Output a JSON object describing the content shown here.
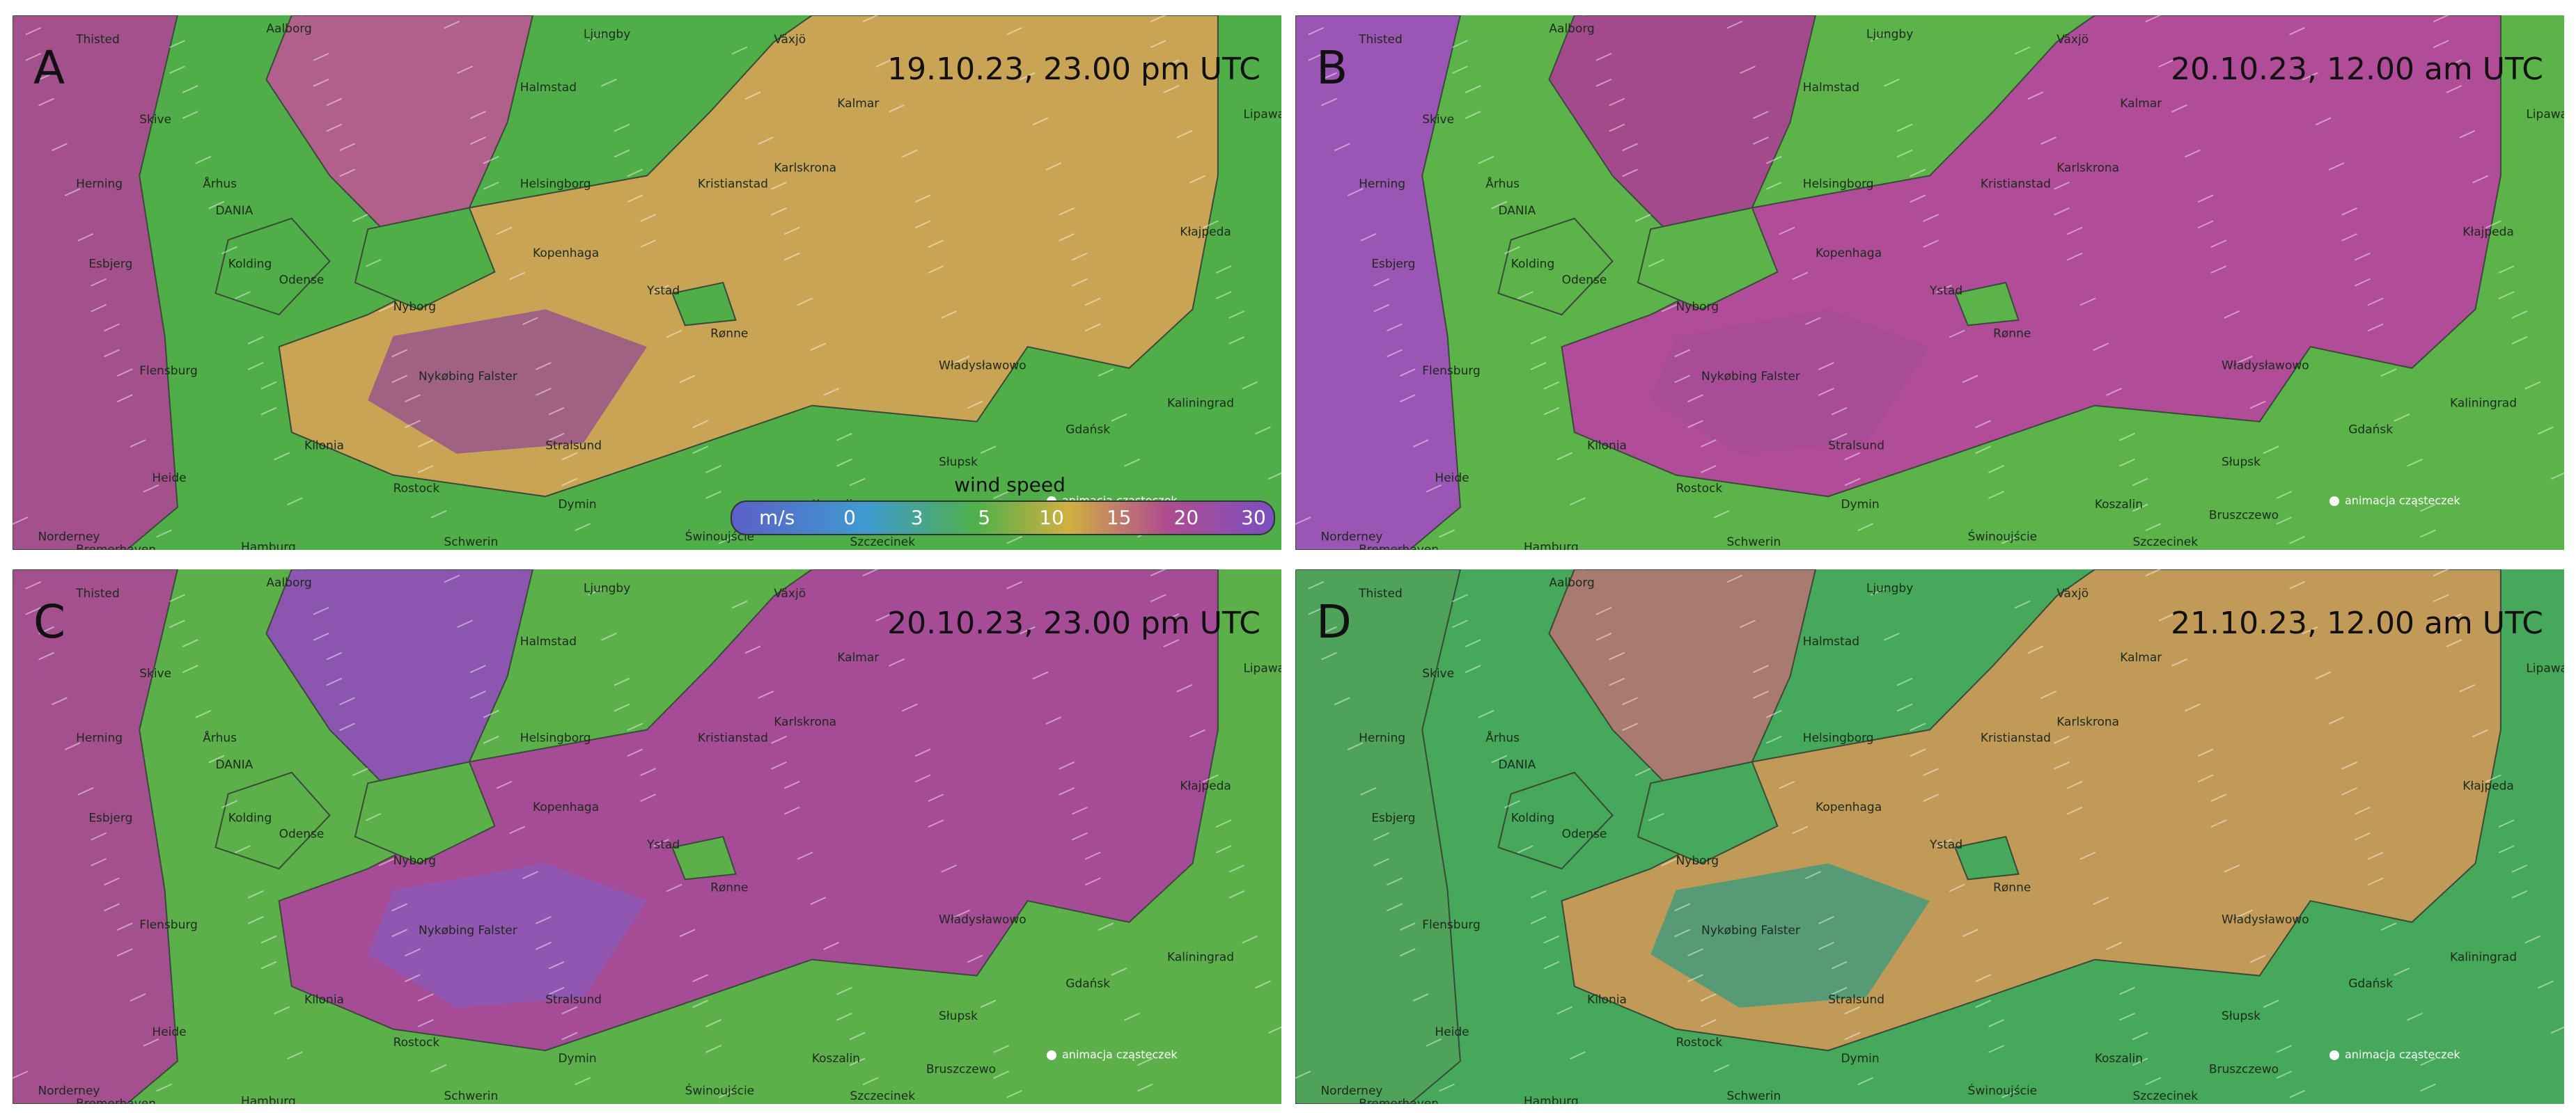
{
  "panels": [
    {
      "label": "A",
      "timestamp": "19.10.23, 23.00 pm UTC",
      "land": "#4fae47",
      "baltic": "#c9a455",
      "kattegat": "#b0608a",
      "north": "#a4508c",
      "south_sea": "#9b5a88"
    },
    {
      "label": "B",
      "timestamp": "20.10.23, 12.00 am UTC",
      "land": "#5cb34a",
      "baltic": "#b04c98",
      "kattegat": "#a24a8c",
      "north": "#9b55b4",
      "south_sea": "#a84d98"
    },
    {
      "label": "C",
      "timestamp": "20.10.23, 23.00 pm UTC",
      "land": "#5cb04a",
      "baltic": "#a64b96",
      "kattegat": "#8c55b0",
      "north": "#a4508f",
      "south_sea": "#8e58b4"
    },
    {
      "label": "D",
      "timestamp": "21.10.23, 12.00 am UTC",
      "land": "#45a85a",
      "baltic": "#c29a58",
      "kattegat": "#a87a70",
      "north": "#4ea25a",
      "south_sea": "#4a9b7a"
    }
  ],
  "places": [
    "Thisted",
    "Aalborg",
    "Skive",
    "Herning",
    "Århus",
    "DANIA",
    "Esbjerg",
    "Kolding",
    "Odense",
    "Nyborg",
    "Flensburg",
    "Nykøbing Falster",
    "Kilonia",
    "Heide",
    "Rostock",
    "Hamburg",
    "Schwerin",
    "Dymin",
    "Norderney",
    "Bremerhaven",
    "Halmstad",
    "Ljungby",
    "Växjö",
    "Kalmar",
    "Helsingborg",
    "Kopenhaga",
    "Kristianstad",
    "Karlskrona",
    "Ystad",
    "Rønne",
    "Władysławowo",
    "Słupsk",
    "Koszalin",
    "Gdańsk",
    "Świnoujście",
    "Stralsund",
    "Kaliningrad",
    "Kłajpeda",
    "Lipawa",
    "Bruszczewo",
    "Szczecinek"
  ],
  "legend": {
    "title": "wind speed",
    "unit": "m/s",
    "ticks": [
      0,
      3,
      5,
      10,
      15,
      20,
      30
    ]
  },
  "toggle": "animacja cząsteczek"
}
